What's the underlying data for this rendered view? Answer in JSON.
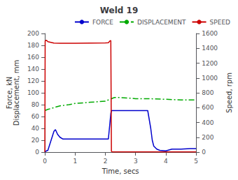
{
  "chart_data": {
    "type": "line",
    "title": "Weld 19",
    "xlabel": "Time, secs",
    "ylabel": "Force, kN\nDisplacement, mm",
    "y2label": "Speed, rpm",
    "xlim": [
      0,
      5
    ],
    "xticks": [
      0,
      1,
      2,
      3,
      4,
      5
    ],
    "ylim": [
      0,
      200
    ],
    "yticks": [
      0,
      20,
      40,
      60,
      80,
      100,
      120,
      140,
      160,
      180,
      200
    ],
    "y2lim": [
      0,
      1600
    ],
    "y2ticks": [
      0,
      200,
      400,
      600,
      800,
      1000,
      1200,
      1400,
      1600
    ],
    "grid": false,
    "legend": "upper right",
    "series": [
      {
        "name": "FORCE",
        "color": "#0000cc",
        "line_style": "solid",
        "axis": "y",
        "x": [
          0.0,
          0.05,
          0.1,
          0.3,
          0.35,
          0.42,
          0.5,
          0.6,
          0.7,
          0.8,
          0.9,
          1.0,
          1.2,
          1.5,
          1.8,
          2.0,
          2.1,
          2.18,
          2.2,
          2.22,
          2.25,
          2.3,
          2.35,
          2.4,
          2.5,
          2.6,
          2.8,
          3.0,
          3.2,
          3.4,
          3.5,
          3.55,
          3.6,
          3.7,
          3.8,
          4.0,
          4.2,
          4.5,
          4.8,
          5.0
        ],
        "values": [
          0,
          2,
          3,
          35,
          38,
          30,
          25,
          22,
          22,
          22,
          22,
          22,
          22,
          22,
          22,
          22,
          22,
          65,
          70,
          70,
          70,
          70,
          70,
          70,
          70,
          70,
          70,
          70,
          70,
          70,
          40,
          20,
          10,
          5,
          3,
          2,
          5,
          5,
          6,
          6
        ]
      },
      {
        "name": "DISPLACEMENT",
        "color": "#00aa00",
        "line_style": "dashdot",
        "axis": "y",
        "x": [
          0.0,
          0.1,
          0.3,
          0.5,
          0.8,
          1.0,
          1.5,
          2.0,
          2.1,
          2.2,
          2.3,
          2.5,
          2.8,
          3.0,
          3.5,
          4.0,
          4.5,
          5.0
        ],
        "values": [
          70,
          72,
          75,
          78,
          80,
          82,
          84,
          86,
          88,
          90,
          92,
          92,
          91,
          90,
          90,
          89,
          88,
          88
        ]
      },
      {
        "name": "SPEED",
        "color": "#cc0000",
        "line_style": "solid",
        "axis": "y2",
        "x": [
          0.0,
          0.01,
          0.05,
          0.1,
          0.3,
          0.5,
          1.0,
          1.5,
          2.0,
          2.1,
          2.15,
          2.18,
          2.2,
          2.22,
          2.25,
          2.3,
          2.35,
          2.5,
          3.0,
          4.0,
          5.0
        ],
        "values": [
          0,
          1500,
          1510,
          1490,
          1470,
          1468,
          1468,
          1470,
          1472,
          1475,
          1500,
          1505,
          10,
          5,
          2,
          2,
          2,
          2,
          2,
          2,
          2
        ]
      }
    ]
  }
}
